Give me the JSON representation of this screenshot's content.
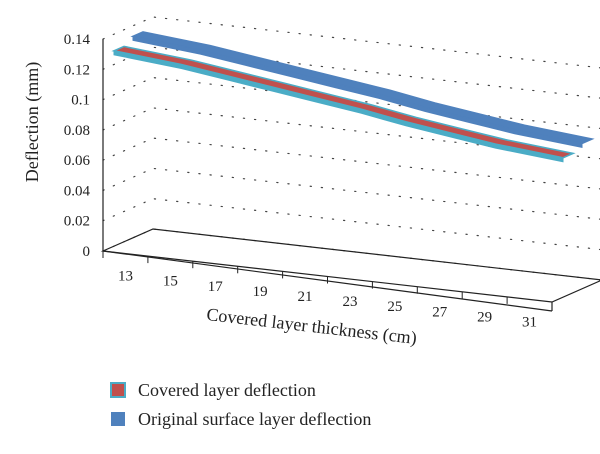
{
  "chart_data": {
    "type": "line",
    "style": "3d-ribbon",
    "x": [
      13,
      15,
      17,
      19,
      21,
      23,
      25,
      27,
      29,
      31
    ],
    "x_tick_labels": [
      "13",
      "15",
      "17",
      "19",
      "21",
      "23",
      "25",
      "27",
      "29",
      "31"
    ],
    "y_tick_labels": [
      "0",
      "0.02",
      "0.04",
      "0.06",
      "0.08",
      "0.1",
      "0.12",
      "0.14"
    ],
    "xlabel": "Covered layer thickness (cm)",
    "ylabel": "Deflection (mm)",
    "ylim": [
      0,
      0.14
    ],
    "grid": "dotted",
    "legend_position": "bottom-left",
    "series": [
      {
        "name": "Covered layer deflection",
        "color": "#c0504d",
        "edge_color": "#4bacc6",
        "values": [
          0.129,
          0.125,
          0.121,
          0.117,
          0.113,
          0.109,
          0.104,
          0.1,
          0.096,
          0.092
        ]
      },
      {
        "name": "Original surface layer deflection",
        "color": "#4f81bd",
        "edge_color": "#4f81bd",
        "values": [
          0.133,
          0.129,
          0.125,
          0.121,
          0.117,
          0.113,
          0.108,
          0.104,
          0.1,
          0.096
        ]
      }
    ]
  }
}
